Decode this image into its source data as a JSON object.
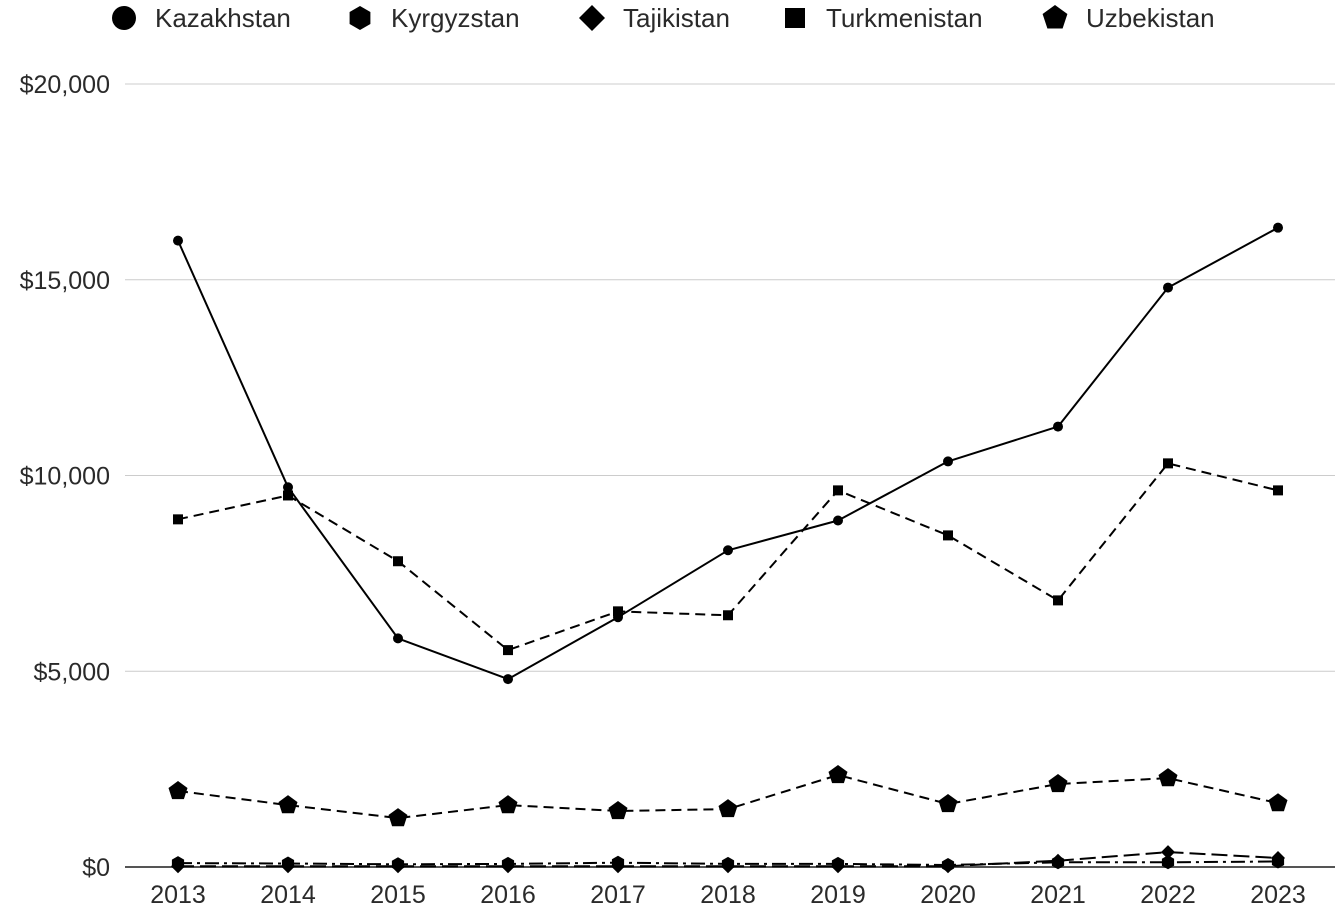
{
  "chart_data": {
    "type": "line",
    "categories": [
      "2013",
      "2014",
      "2015",
      "2016",
      "2017",
      "2018",
      "2019",
      "2020",
      "2021",
      "2022",
      "2023"
    ],
    "series": [
      {
        "name": "Kazakhstan",
        "values": [
          16000,
          9700,
          5840,
          4800,
          6380,
          8090,
          8850,
          10360,
          11250,
          14800,
          16330
        ],
        "marker": "circle",
        "line_style": "solid"
      },
      {
        "name": "Kyrgyzstan",
        "values": [
          100,
          90,
          70,
          80,
          110,
          80,
          80,
          50,
          120,
          120,
          140
        ],
        "marker": "hexagon",
        "line_style": "dash-dot"
      },
      {
        "name": "Tajikistan",
        "values": [
          20,
          20,
          20,
          20,
          20,
          20,
          20,
          20,
          160,
          380,
          230
        ],
        "marker": "diamond",
        "line_style": "long-dash"
      },
      {
        "name": "Turkmenistan",
        "values": [
          8880,
          9490,
          7810,
          5540,
          6530,
          6430,
          9620,
          8470,
          6810,
          10310,
          9620
        ],
        "marker": "square",
        "line_style": "dashed"
      },
      {
        "name": "Uzbekistan",
        "values": [
          1940,
          1580,
          1250,
          1580,
          1430,
          1480,
          2350,
          1610,
          2120,
          2270,
          1630
        ],
        "marker": "pentagon",
        "line_style": "dashed"
      }
    ],
    "ylim": [
      0,
      20000
    ],
    "yticks": [
      {
        "value": 0,
        "label": "$0"
      },
      {
        "value": 5000,
        "label": "$5,000"
      },
      {
        "value": 10000,
        "label": "$10,000"
      },
      {
        "value": 15000,
        "label": "$15,000"
      },
      {
        "value": 20000,
        "label": "$20,000"
      }
    ],
    "grid": true,
    "legend": "top",
    "colors": {
      "line": "#000000",
      "grid": "#cccccc",
      "baseline": "#555555",
      "text": "#2a2a2a"
    }
  }
}
